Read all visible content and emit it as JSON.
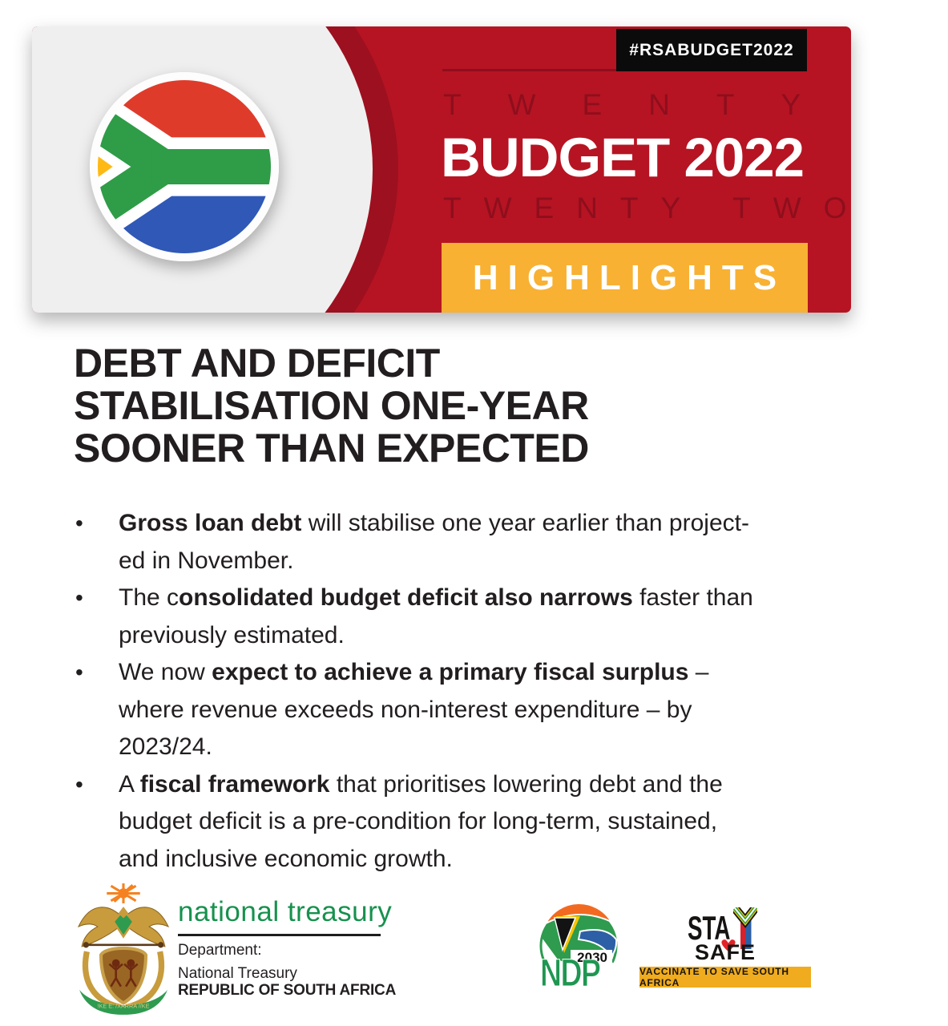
{
  "colors": {
    "banner_red": "#B61423",
    "banner_dark_red": "#9D101F",
    "banner_watermark": "#8E0E1C",
    "banner_grey": "#F0EFEF",
    "highlight_yellow": "#F8B133",
    "badge_black": "#0B0B0B",
    "text_black": "#221E1F",
    "treasury_green": "#17914E",
    "ndp_green": "#2E9B4F",
    "ndp_orange": "#F26A21",
    "ndp_blue": "#2C5FA5",
    "staysafe_yellow": "#F0AC1E",
    "heart_red": "#E32227"
  },
  "banner": {
    "hashtag": "#RSABUDGET2022",
    "watermark_top": "TWENTY",
    "title": "BUDGET 2022",
    "watermark_bottom": "TWENTY TWO",
    "highlights": "HIGHLIGHTS"
  },
  "main": {
    "heading": "DEBT AND DEFICIT\nSTABILISATION ONE-YEAR\nSOONER THAN EXPECTED",
    "bullets": [
      [
        {
          "t": "Gross loan debt",
          "b": true
        },
        {
          "t": " will stabilise one year earlier than project-\ned in November.",
          "b": false
        }
      ],
      [
        {
          "t": "The c",
          "b": false
        },
        {
          "t": "onsolidated budget deficit also narrows",
          "b": true
        },
        {
          "t": " faster than\npreviously estimated.",
          "b": false
        }
      ],
      [
        {
          "t": "We now ",
          "b": false
        },
        {
          "t": "expect to achieve a primary fiscal surplus",
          "b": true
        },
        {
          "t": " –\nwhere revenue exceeds non-interest expenditure – by\n2023/24.",
          "b": false
        }
      ],
      [
        {
          "t": "A ",
          "b": false
        },
        {
          "t": "fiscal framework",
          "b": true
        },
        {
          "t": " that prioritises lowering debt and the\nbudget deficit is a pre-condition for long-term, sustained,\nand inclusive economic growth.",
          "b": false
        }
      ]
    ]
  },
  "footer": {
    "treasury": {
      "name": "national treasury",
      "dept_label": "Department:",
      "dept_name": "National Treasury",
      "country": "REPUBLIC OF SOUTH AFRICA",
      "motto": "!KE E: /XARRA //KE"
    },
    "ndp": {
      "year": "2030",
      "label": "NDP"
    },
    "staysafe": {
      "stay_prefix": "STA",
      "safe": "SAFE",
      "bar": "VACCINATE TO SAVE SOUTH AFRICA"
    }
  }
}
